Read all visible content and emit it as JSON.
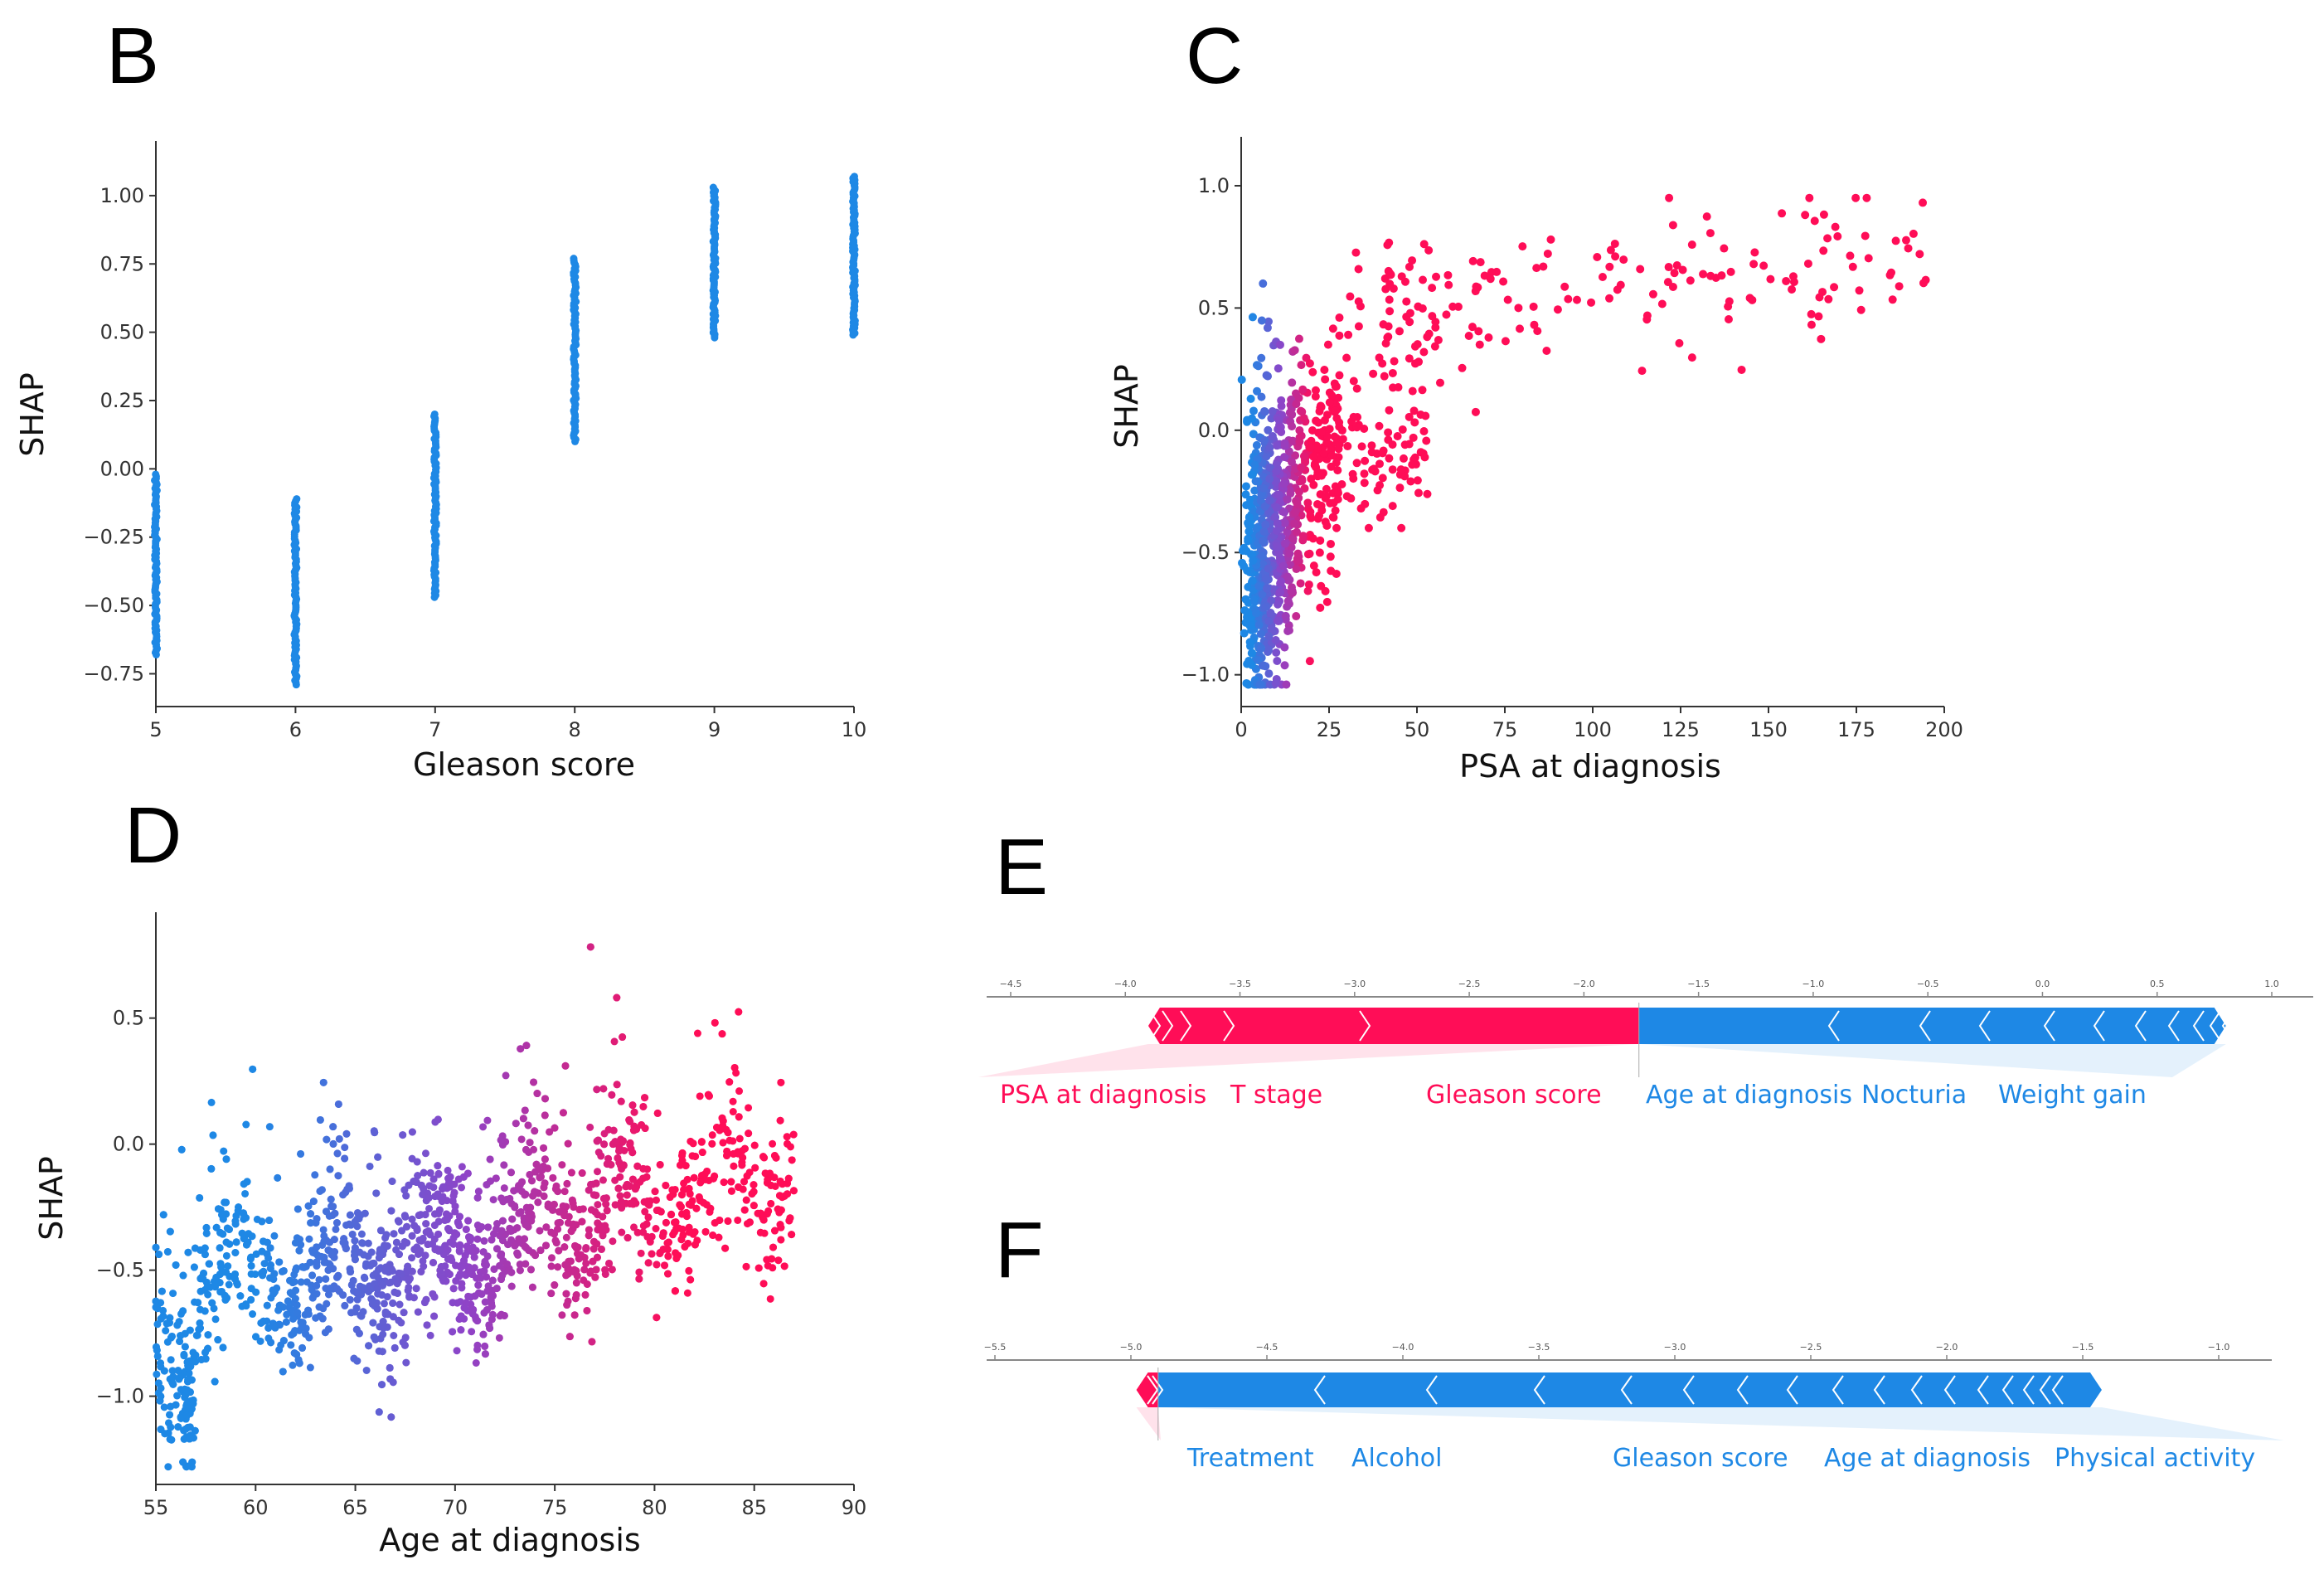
{
  "colors": {
    "blue": "#1E88E5",
    "purple": "#8E44C8",
    "red": "#FF0D57",
    "axis": "#333333"
  },
  "chart_data": [
    {
      "panel": "B",
      "type": "scatter",
      "xlabel": "Gleason score",
      "ylabel": "SHAP",
      "xlim": [
        5,
        10
      ],
      "ylim": [
        -0.87,
        1.2
      ],
      "xticks": [
        5,
        6,
        7,
        8,
        9,
        10
      ],
      "yticks": [
        -0.75,
        -0.5,
        -0.25,
        0.0,
        0.25,
        0.5,
        0.75,
        1.0
      ],
      "yticklabels": [
        "−0.75",
        "−0.50",
        "−0.25",
        "0.00",
        "0.25",
        "0.50",
        "0.75",
        "1.00"
      ],
      "strips": [
        {
          "x": 5,
          "ymin": -0.68,
          "ymax": -0.02
        },
        {
          "x": 6,
          "ymin": -0.79,
          "ymax": -0.11
        },
        {
          "x": 7,
          "ymin": -0.47,
          "ymax": 0.2
        },
        {
          "x": 8,
          "ymin": 0.1,
          "ymax": 0.77
        },
        {
          "x": 9,
          "ymin": 0.48,
          "ymax": 1.03
        },
        {
          "x": 10,
          "ymin": 0.49,
          "ymax": 1.07
        }
      ]
    },
    {
      "panel": "C",
      "type": "scatter",
      "xlabel": "PSA at diagnosis",
      "ylabel": "SHAP",
      "xlim": [
        0,
        200
      ],
      "ylim": [
        -1.13,
        1.2
      ],
      "xticks": [
        0,
        25,
        50,
        75,
        100,
        125,
        150,
        175,
        200
      ],
      "yticks": [
        -1.0,
        -0.5,
        0.0,
        0.5,
        1.0
      ],
      "yticklabels": [
        "−1.0",
        "−0.5",
        "0.0",
        "0.5",
        "1.0"
      ],
      "point_count_estimate": 900
    },
    {
      "panel": "D",
      "type": "scatter",
      "xlabel": "Age at diagnosis",
      "ylabel": "SHAP",
      "xlim": [
        55,
        90
      ],
      "ylim": [
        -1.35,
        0.92
      ],
      "xticks": [
        55,
        60,
        65,
        70,
        75,
        80,
        85,
        90
      ],
      "yticks": [
        -1.0,
        -0.5,
        0.0,
        0.5
      ],
      "yticklabels": [
        "−1.0",
        "−0.5",
        "0.0",
        "0.5"
      ],
      "point_count_estimate": 3000
    },
    {
      "panel": "E",
      "type": "force-plot",
      "xlim": [
        -4.5,
        1.0
      ],
      "ticks": [
        "−4.5",
        "−4.0",
        "−3.5",
        "−3.0",
        "−2.5",
        "−2.0",
        "−1.5",
        "−1.0",
        "−0.5",
        "0.0",
        "0.5",
        "1.0"
      ],
      "positive_range": [
        -3.9,
        -1.76
      ],
      "negative_range": [
        -1.76,
        0.8
      ],
      "positive_features": [
        "PSA at diagnosis",
        "T stage",
        "Gleason score"
      ],
      "negative_features": [
        "Age at diagnosis",
        "Nocturia",
        "Weight gain"
      ]
    },
    {
      "panel": "F",
      "type": "force-plot",
      "xlim": [
        -5.5,
        -1.0
      ],
      "ticks": [
        "−5.5",
        "−5.0",
        "−4.5",
        "−4.0",
        "−3.5",
        "−3.0",
        "−2.5",
        "−2.0",
        "−1.5",
        "−1.0"
      ],
      "positive_range": [
        -4.98,
        -4.9
      ],
      "negative_range": [
        -4.9,
        -1.43
      ],
      "positive_features": [],
      "negative_features": [
        "Treatment",
        "Alcohol",
        "Gleason score",
        "Age at diagnosis",
        "Physical activity"
      ]
    }
  ]
}
